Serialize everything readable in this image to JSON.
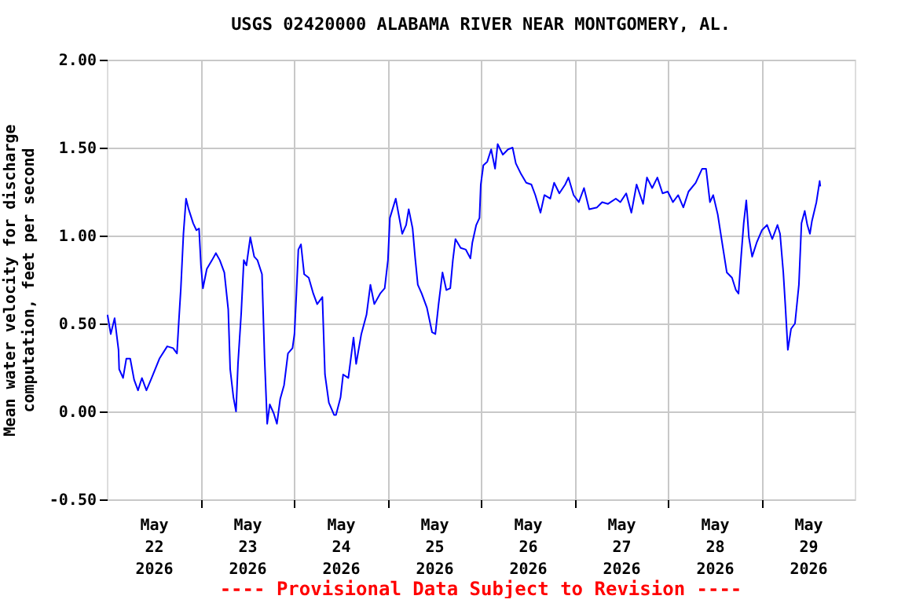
{
  "chart_data": {
    "type": "line",
    "title": "USGS 02420000 ALABAMA RIVER NEAR MONTGOMERY, AL.",
    "ylabel": "Mean water velocity for discharge computation, feet per second",
    "annotations": [
      "---- Provisional Data Subject to Revision ----"
    ],
    "x": [
      "2026-05-22T00:10",
      "2026-05-22T01:00",
      "2026-05-22T02:00",
      "2026-05-22T03:00",
      "2026-05-22T03:10",
      "2026-05-22T04:10",
      "2026-05-22T05:00",
      "2026-05-22T06:00",
      "2026-05-22T07:00",
      "2026-05-22T08:00",
      "2026-05-22T09:00",
      "2026-05-22T10:10",
      "2026-05-22T11:30",
      "2026-05-22T13:30",
      "2026-05-22T15:30",
      "2026-05-22T17:00",
      "2026-05-22T18:00",
      "2026-05-22T18:30",
      "2026-05-22T19:00",
      "2026-05-22T19:40",
      "2026-05-22T20:20",
      "2026-05-22T21:00",
      "2026-05-22T22:10",
      "2026-05-22T23:00",
      "2026-05-22T23:40",
      "2026-05-23T00:10",
      "2026-05-23T00:40",
      "2026-05-23T01:40",
      "2026-05-23T03:00",
      "2026-05-23T04:00",
      "2026-05-23T05:00",
      "2026-05-23T06:10",
      "2026-05-23T07:10",
      "2026-05-23T07:40",
      "2026-05-23T08:30",
      "2026-05-23T09:10",
      "2026-05-23T09:40",
      "2026-05-23T10:30",
      "2026-05-23T11:10",
      "2026-05-23T11:50",
      "2026-05-23T12:50",
      "2026-05-23T13:50",
      "2026-05-23T14:40",
      "2026-05-23T15:50",
      "2026-05-23T16:30",
      "2026-05-23T17:10",
      "2026-05-23T17:50",
      "2026-05-23T18:50",
      "2026-05-23T19:40",
      "2026-05-23T20:30",
      "2026-05-23T21:30",
      "2026-05-23T22:30",
      "2026-05-23T23:40",
      "2026-05-24T00:10",
      "2026-05-24T00:40",
      "2026-05-24T01:10",
      "2026-05-24T01:50",
      "2026-05-24T02:40",
      "2026-05-24T03:50",
      "2026-05-24T05:00",
      "2026-05-24T06:00",
      "2026-05-24T07:20",
      "2026-05-24T08:00",
      "2026-05-24T09:00",
      "2026-05-24T10:20",
      "2026-05-24T10:50",
      "2026-05-24T12:00",
      "2026-05-24T12:40",
      "2026-05-24T14:00",
      "2026-05-24T15:20",
      "2026-05-24T16:00",
      "2026-05-24T17:20",
      "2026-05-24T18:40",
      "2026-05-24T19:40",
      "2026-05-24T20:40",
      "2026-05-24T22:10",
      "2026-05-24T23:20",
      "2026-05-25T00:10",
      "2026-05-25T00:40",
      "2026-05-25T02:10",
      "2026-05-25T02:50",
      "2026-05-25T03:50",
      "2026-05-25T04:50",
      "2026-05-25T05:30",
      "2026-05-25T06:30",
      "2026-05-25T07:10",
      "2026-05-25T07:50",
      "2026-05-25T08:50",
      "2026-05-25T10:10",
      "2026-05-25T11:30",
      "2026-05-25T12:20",
      "2026-05-25T13:10",
      "2026-05-25T14:10",
      "2026-05-25T15:10",
      "2026-05-25T16:10",
      "2026-05-25T16:50",
      "2026-05-25T17:30",
      "2026-05-25T18:50",
      "2026-05-25T20:10",
      "2026-05-25T21:20",
      "2026-05-25T21:50",
      "2026-05-25T22:50",
      "2026-05-25T23:40",
      "2026-05-26T00:00",
      "2026-05-26T00:40",
      "2026-05-26T01:40",
      "2026-05-26T02:40",
      "2026-05-26T03:40",
      "2026-05-26T04:20",
      "2026-05-26T05:40",
      "2026-05-26T07:00",
      "2026-05-26T08:10",
      "2026-05-26T09:00",
      "2026-05-26T10:20",
      "2026-05-26T11:40",
      "2026-05-26T13:00",
      "2026-05-26T14:00",
      "2026-05-26T15:20",
      "2026-05-26T16:20",
      "2026-05-26T17:50",
      "2026-05-26T18:50",
      "2026-05-26T20:10",
      "2026-05-26T21:40",
      "2026-05-26T22:30",
      "2026-05-26T23:50",
      "2026-05-27T01:10",
      "2026-05-27T02:30",
      "2026-05-27T03:50",
      "2026-05-27T05:50",
      "2026-05-27T07:10",
      "2026-05-27T08:40",
      "2026-05-27T10:40",
      "2026-05-27T11:50",
      "2026-05-27T13:20",
      "2026-05-27T14:40",
      "2026-05-27T16:00",
      "2026-05-27T17:40",
      "2026-05-27T18:40",
      "2026-05-27T20:00",
      "2026-05-27T21:20",
      "2026-05-27T22:40",
      "2026-05-28T00:00",
      "2026-05-28T01:20",
      "2026-05-28T02:40",
      "2026-05-28T04:00",
      "2026-05-28T05:20",
      "2026-05-28T07:10",
      "2026-05-28T08:50",
      "2026-05-28T09:50",
      "2026-05-28T10:50",
      "2026-05-28T11:40",
      "2026-05-28T12:50",
      "2026-05-28T14:10",
      "2026-05-28T15:10",
      "2026-05-28T16:30",
      "2026-05-28T17:30",
      "2026-05-28T18:10",
      "2026-05-28T18:50",
      "2026-05-28T19:30",
      "2026-05-28T20:10",
      "2026-05-28T20:50",
      "2026-05-28T21:40",
      "2026-05-28T22:50",
      "2026-05-29T00:10",
      "2026-05-29T01:30",
      "2026-05-29T02:50",
      "2026-05-29T04:10",
      "2026-05-29T04:50",
      "2026-05-29T05:40",
      "2026-05-29T06:10",
      "2026-05-29T06:50",
      "2026-05-29T07:40",
      "2026-05-29T08:40",
      "2026-05-29T09:40",
      "2026-05-29T10:20",
      "2026-05-29T11:10",
      "2026-05-29T11:50",
      "2026-05-29T12:30",
      "2026-05-29T13:00",
      "2026-05-29T14:10",
      "2026-05-29T15:00",
      "2026-05-29T15:10"
    ],
    "series": [
      {
        "color": "#0000ff",
        "values": [
          0.55,
          0.44,
          0.53,
          0.35,
          0.24,
          0.19,
          0.3,
          0.3,
          0.18,
          0.12,
          0.19,
          0.12,
          0.19,
          0.3,
          0.37,
          0.36,
          0.33,
          0.52,
          0.7,
          1.01,
          1.21,
          1.15,
          1.07,
          1.03,
          1.04,
          0.83,
          0.7,
          0.81,
          0.86,
          0.9,
          0.86,
          0.79,
          0.58,
          0.24,
          0.08,
          0.0,
          0.27,
          0.56,
          0.86,
          0.83,
          0.99,
          0.88,
          0.86,
          0.78,
          0.3,
          -0.07,
          0.04,
          -0.01,
          -0.07,
          0.07,
          0.15,
          0.33,
          0.36,
          0.44,
          0.67,
          0.92,
          0.95,
          0.78,
          0.76,
          0.67,
          0.61,
          0.65,
          0.21,
          0.05,
          -0.02,
          -0.02,
          0.08,
          0.21,
          0.19,
          0.42,
          0.27,
          0.44,
          0.55,
          0.72,
          0.61,
          0.67,
          0.7,
          0.86,
          1.1,
          1.21,
          1.13,
          1.01,
          1.06,
          1.15,
          1.04,
          0.87,
          0.72,
          0.67,
          0.59,
          0.45,
          0.44,
          0.61,
          0.79,
          0.69,
          0.7,
          0.86,
          0.98,
          0.93,
          0.92,
          0.87,
          0.96,
          1.06,
          1.1,
          1.29,
          1.4,
          1.42,
          1.49,
          1.38,
          1.52,
          1.46,
          1.49,
          1.5,
          1.41,
          1.35,
          1.3,
          1.29,
          1.23,
          1.13,
          1.23,
          1.21,
          1.3,
          1.24,
          1.29,
          1.33,
          1.23,
          1.19,
          1.27,
          1.15,
          1.16,
          1.19,
          1.18,
          1.21,
          1.19,
          1.24,
          1.13,
          1.29,
          1.18,
          1.33,
          1.27,
          1.33,
          1.24,
          1.25,
          1.19,
          1.23,
          1.16,
          1.25,
          1.3,
          1.38,
          1.38,
          1.19,
          1.23,
          1.12,
          0.93,
          0.79,
          0.76,
          0.69,
          0.67,
          0.88,
          1.07,
          1.2,
          0.99,
          0.88,
          0.96,
          1.03,
          1.06,
          0.98,
          1.06,
          1.01,
          0.79,
          0.61,
          0.35,
          0.47,
          0.5,
          0.72,
          1.07,
          1.14,
          1.06,
          1.01,
          1.08,
          1.19,
          1.31,
          1.28
        ]
      }
    ],
    "xlim": [
      "2026-05-22T00:00",
      "2026-05-30T00:00"
    ],
    "xticks": [
      {
        "value": "2026-05-22T12:00",
        "label": "May 22 2026"
      },
      {
        "value": "2026-05-23T12:00",
        "label": "May 23 2026"
      },
      {
        "value": "2026-05-24T12:00",
        "label": "May 24 2026"
      },
      {
        "value": "2026-05-25T12:00",
        "label": "May 25 2026"
      },
      {
        "value": "2026-05-26T12:00",
        "label": "May 26 2026"
      },
      {
        "value": "2026-05-27T12:00",
        "label": "May 27 2026"
      },
      {
        "value": "2026-05-28T12:00",
        "label": "May 28 2026"
      },
      {
        "value": "2026-05-29T12:00",
        "label": "May 29 2026"
      },
      {
        "value": "2026-05-23T00:00",
        "label": null
      },
      {
        "value": "2026-05-24T00:00",
        "label": null
      },
      {
        "value": "2026-05-25T00:00",
        "label": null
      },
      {
        "value": "2026-05-26T00:00",
        "label": null
      },
      {
        "value": "2026-05-27T00:00",
        "label": null
      },
      {
        "value": "2026-05-28T00:00",
        "label": null
      },
      {
        "value": "2026-05-29T00:00",
        "label": null
      }
    ],
    "ylim": [
      -0.5,
      2.0
    ],
    "yticks": [
      {
        "value": -0.5,
        "label": "-0.50"
      },
      {
        "value": 0,
        "label": "0.00"
      },
      {
        "value": 0.5,
        "label": "0.50"
      },
      {
        "value": 1.0,
        "label": "1.00"
      },
      {
        "value": 1.5,
        "label": "1.50"
      },
      {
        "value": 2.0,
        "label": "2.00"
      }
    ],
    "grid": true,
    "line_style": "solid",
    "marker": "none"
  }
}
